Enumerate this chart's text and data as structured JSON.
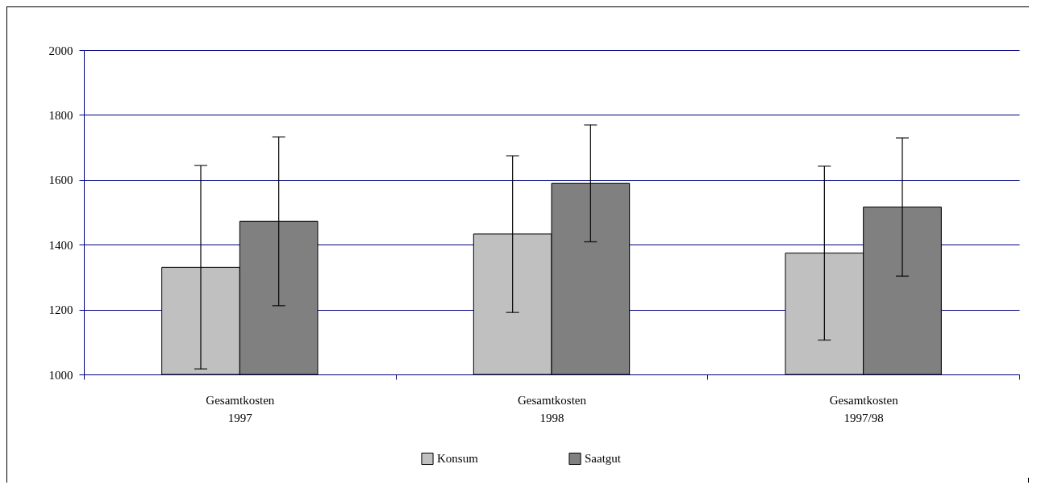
{
  "chart_data": {
    "type": "bar",
    "categories": [
      "Gesamtkosten\n1997",
      "Gesamtkosten\n1998",
      "Gesamtkosten\n1997/98"
    ],
    "series": [
      {
        "name": "Konsum",
        "color": "#c0c0c0",
        "values": [
          1330,
          1433,
          1374
        ],
        "errors": [
          [
            1017,
            1644
          ],
          [
            1191,
            1674
          ],
          [
            1106,
            1642
          ]
        ]
      },
      {
        "name": "Saatgut",
        "color": "#808080",
        "values": [
          1472,
          1589,
          1516
        ],
        "errors": [
          [
            1212,
            1732
          ],
          [
            1409,
            1769
          ],
          [
            1303,
            1729
          ]
        ]
      }
    ],
    "ylim": [
      1000,
      2000
    ],
    "yticks": [
      1000,
      1200,
      1400,
      1600,
      1800,
      2000
    ],
    "grid": "y",
    "legend": "bottom"
  }
}
